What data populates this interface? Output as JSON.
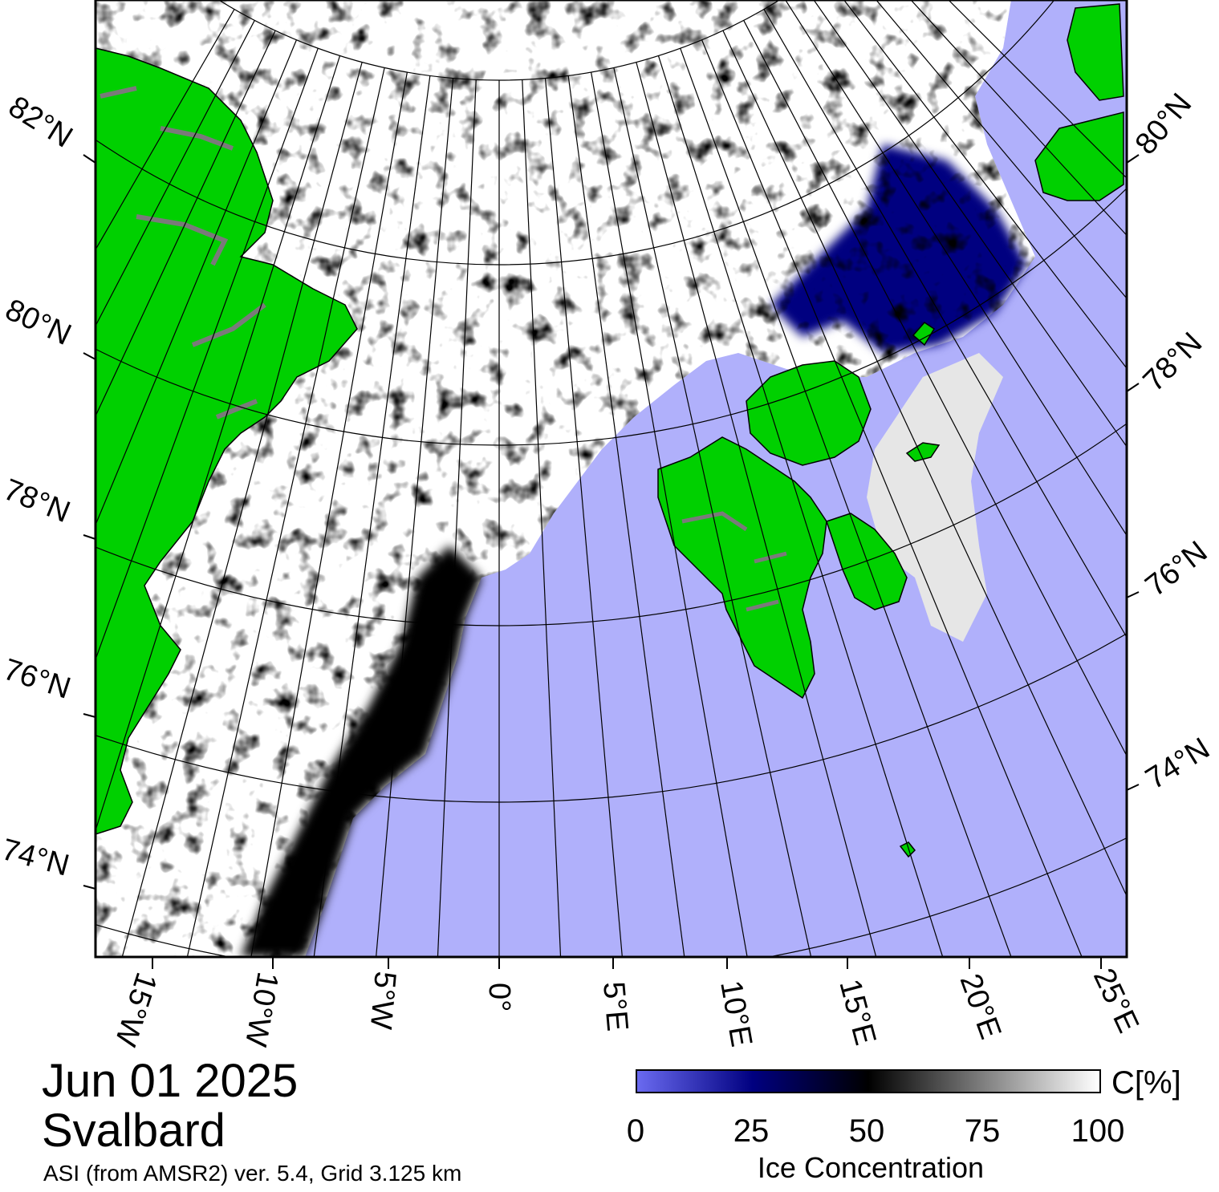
{
  "map": {
    "date": "Jun 01 2025",
    "region": "Svalbard",
    "source": "ASI (from AMSR2) ver. 5.4,  Grid 3.125 km",
    "lat_labels_left": [
      "82°N",
      "80°N",
      "78°N",
      "76°N",
      "74°N"
    ],
    "lat_labels_right": [
      "80°N",
      "78°N",
      "76°N",
      "74°N"
    ],
    "lon_labels": [
      "15°W",
      "10°W",
      "5°W",
      "0°",
      "5°E",
      "10°E",
      "15°E",
      "20°E",
      "25°E"
    ],
    "colors": {
      "open_water": "#b0b0fb",
      "land": "#00d000",
      "ice_full": "#ffffff",
      "ice_mid": "#000000",
      "ice_low": "#000080",
      "graticule": "#000000"
    }
  },
  "colorbar": {
    "unit": "C[%]",
    "ticks": [
      "0",
      "25",
      "50",
      "75",
      "100"
    ],
    "title": "Ice Concentration",
    "range": [
      0,
      100
    ],
    "stops": [
      {
        "value": 0,
        "color": "#6a6af0"
      },
      {
        "value": 25,
        "color": "#000080"
      },
      {
        "value": 50,
        "color": "#000000"
      },
      {
        "value": 100,
        "color": "#ffffff"
      }
    ]
  }
}
